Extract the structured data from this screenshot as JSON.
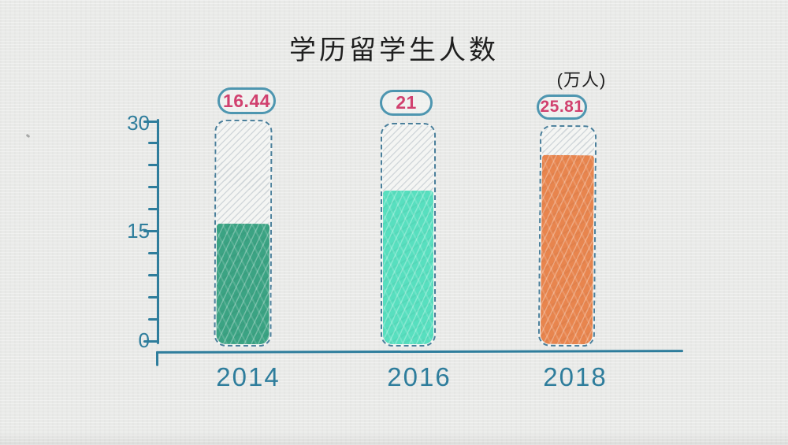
{
  "chart_data": {
    "type": "bar",
    "title": "学历留学生人数",
    "unit_label": "(万人)",
    "categories": [
      "2014",
      "2016",
      "2018"
    ],
    "values": [
      16.44,
      21,
      25.81
    ],
    "value_labels": [
      "16.44",
      "21",
      "25.81"
    ],
    "series_colors": [
      "#3ba383",
      "#58dfbf",
      "#e8854e"
    ],
    "ylim": [
      0,
      30
    ],
    "ytick_labels": [
      "30",
      "15",
      "0"
    ],
    "minor_tick_step": 3,
    "grid": false,
    "legend_position": "none"
  },
  "colors": {
    "background": "#e9eae8",
    "axis": "#2e7d9c",
    "tube_border": "#4a7f9b",
    "tube_interior": "#f4f5f3",
    "hatch_line": "#c7ced3",
    "badge_border": "#4e96b0",
    "value_text": "#d1416f",
    "title_text": "#1f1f1f"
  }
}
